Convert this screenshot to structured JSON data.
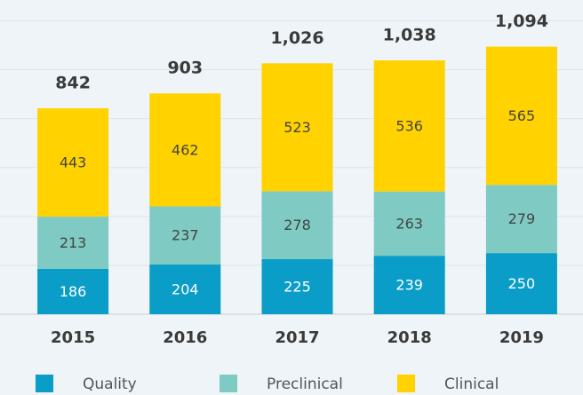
{
  "chart_data": {
    "type": "stacked_bar",
    "categories": [
      "2015",
      "2016",
      "2017",
      "2018",
      "2019"
    ],
    "series": [
      {
        "name": "Quality",
        "color": "#0a9dc7",
        "values": [
          186,
          204,
          225,
          239,
          250
        ]
      },
      {
        "name": "Preclinical",
        "color": "#7fcac2",
        "values": [
          213,
          237,
          278,
          263,
          279
        ]
      },
      {
        "name": "Clinical",
        "color": "#ffd200",
        "values": [
          443,
          462,
          523,
          536,
          565
        ]
      }
    ],
    "totals": [
      842,
      903,
      1026,
      1038,
      1094
    ],
    "total_labels": [
      "842",
      "903",
      "1,026",
      "1,038",
      "1,094"
    ],
    "ylim": [
      0,
      1200
    ],
    "yticks": [
      0,
      200,
      400,
      600,
      800,
      1000,
      1200
    ],
    "grid": true
  }
}
